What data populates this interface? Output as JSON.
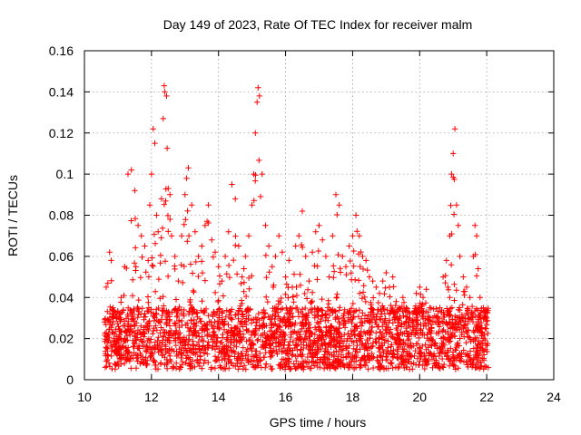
{
  "chart_data": {
    "type": "scatter",
    "title": "Day 149 of 2023, Rate Of TEC Index for receiver malm",
    "xlabel": "GPS time / hours",
    "ylabel": "ROTI / TECUs",
    "xlim": [
      10,
      24
    ],
    "ylim": [
      0,
      0.16
    ],
    "x_ticks": [
      10,
      12,
      14,
      16,
      18,
      20,
      22,
      24
    ],
    "y_ticks": [
      0,
      0.02,
      0.04,
      0.06,
      0.08,
      0.1,
      0.12,
      0.14,
      0.16
    ],
    "x_tick_labels": [
      "10",
      "12",
      "14",
      "16",
      "18",
      "20",
      "22",
      "24"
    ],
    "y_tick_labels": [
      "0",
      "0.02",
      "0.04",
      "0.06",
      "0.08",
      "0.1",
      "0.12",
      "0.14",
      "0.16"
    ],
    "grid": true,
    "marker": "+",
    "color": "#ff0000",
    "x_range_of_data": [
      10.6,
      22.05
    ],
    "series": [
      {
        "points": [
          [
            10.65,
            0.045
          ],
          [
            10.7,
            0.047
          ],
          [
            10.75,
            0.062
          ],
          [
            10.8,
            0.058
          ],
          [
            10.85,
            0.035
          ],
          [
            10.95,
            0.03
          ],
          [
            11.0,
            0.033
          ],
          [
            11.1,
            0.04
          ],
          [
            11.2,
            0.055
          ],
          [
            11.3,
            0.1
          ],
          [
            11.4,
            0.102
          ],
          [
            11.5,
            0.092
          ],
          [
            11.6,
            0.075
          ],
          [
            11.7,
            0.07
          ],
          [
            11.8,
            0.065
          ],
          [
            11.9,
            0.058
          ],
          [
            11.95,
            0.085
          ],
          [
            12.0,
            0.1
          ],
          [
            12.05,
            0.122
          ],
          [
            12.1,
            0.115
          ],
          [
            12.15,
            0.08
          ],
          [
            12.2,
            0.072
          ],
          [
            12.3,
            0.088
          ],
          [
            12.35,
            0.127
          ],
          [
            12.38,
            0.143
          ],
          [
            12.4,
            0.14
          ],
          [
            12.45,
            0.138
          ],
          [
            12.5,
            0.093
          ],
          [
            12.55,
            0.09
          ],
          [
            12.6,
            0.07
          ],
          [
            12.7,
            0.06
          ],
          [
            12.8,
            0.048
          ],
          [
            12.9,
            0.07
          ],
          [
            13.0,
            0.09
          ],
          [
            13.05,
            0.098
          ],
          [
            13.1,
            0.103
          ],
          [
            13.2,
            0.085
          ],
          [
            13.3,
            0.072
          ],
          [
            13.4,
            0.06
          ],
          [
            13.5,
            0.065
          ],
          [
            13.6,
            0.075
          ],
          [
            13.7,
            0.085
          ],
          [
            13.8,
            0.068
          ],
          [
            13.9,
            0.062
          ],
          [
            14.0,
            0.055
          ],
          [
            14.1,
            0.048
          ],
          [
            14.2,
            0.06
          ],
          [
            14.3,
            0.072
          ],
          [
            14.4,
            0.095
          ],
          [
            14.5,
            0.088
          ],
          [
            14.6,
            0.065
          ],
          [
            14.7,
            0.05
          ],
          [
            14.8,
            0.06
          ],
          [
            14.9,
            0.07
          ],
          [
            15.0,
            0.085
          ],
          [
            15.05,
            0.1
          ],
          [
            15.1,
            0.12
          ],
          [
            15.15,
            0.135
          ],
          [
            15.18,
            0.142
          ],
          [
            15.22,
            0.138
          ],
          [
            15.3,
            0.1
          ],
          [
            15.4,
            0.075
          ],
          [
            15.5,
            0.065
          ],
          [
            15.6,
            0.055
          ],
          [
            15.7,
            0.06
          ],
          [
            15.8,
            0.07
          ],
          [
            15.9,
            0.062
          ],
          [
            16.0,
            0.05
          ],
          [
            16.1,
            0.058
          ],
          [
            16.2,
            0.045
          ],
          [
            16.3,
            0.065
          ],
          [
            16.4,
            0.07
          ],
          [
            16.5,
            0.082
          ],
          [
            16.6,
            0.06
          ],
          [
            16.7,
            0.048
          ],
          [
            16.8,
            0.062
          ],
          [
            16.9,
            0.072
          ],
          [
            17.0,
            0.075
          ],
          [
            17.1,
            0.068
          ],
          [
            17.2,
            0.06
          ],
          [
            17.3,
            0.05
          ],
          [
            17.4,
            0.07
          ],
          [
            17.5,
            0.09
          ],
          [
            17.6,
            0.085
          ],
          [
            17.7,
            0.06
          ],
          [
            17.8,
            0.055
          ],
          [
            17.9,
            0.065
          ],
          [
            18.0,
            0.07
          ],
          [
            18.1,
            0.08
          ],
          [
            18.2,
            0.07
          ],
          [
            18.3,
            0.06
          ],
          [
            18.4,
            0.058
          ],
          [
            18.5,
            0.05
          ],
          [
            18.6,
            0.048
          ],
          [
            18.7,
            0.045
          ],
          [
            18.8,
            0.042
          ],
          [
            18.9,
            0.048
          ],
          [
            19.0,
            0.052
          ],
          [
            19.1,
            0.045
          ],
          [
            19.2,
            0.05
          ],
          [
            19.3,
            0.038
          ],
          [
            19.4,
            0.035
          ],
          [
            19.5,
            0.04
          ],
          [
            19.6,
            0.035
          ],
          [
            19.7,
            0.03
          ],
          [
            19.8,
            0.032
          ],
          [
            19.9,
            0.042
          ],
          [
            20.0,
            0.045
          ],
          [
            20.1,
            0.04
          ],
          [
            20.2,
            0.044
          ],
          [
            20.3,
            0.035
          ],
          [
            20.4,
            0.03
          ],
          [
            20.5,
            0.028
          ],
          [
            20.6,
            0.035
          ],
          [
            20.7,
            0.05
          ],
          [
            20.8,
            0.058
          ],
          [
            20.9,
            0.07
          ],
          [
            20.95,
            0.1
          ],
          [
            21.0,
            0.11
          ],
          [
            21.05,
            0.122
          ],
          [
            21.1,
            0.085
          ],
          [
            21.15,
            0.075
          ],
          [
            21.2,
            0.06
          ],
          [
            21.3,
            0.05
          ],
          [
            21.4,
            0.045
          ],
          [
            21.5,
            0.04
          ],
          [
            21.6,
            0.06
          ],
          [
            21.65,
            0.075
          ],
          [
            21.7,
            0.07
          ],
          [
            21.8,
            0.04
          ],
          [
            21.9,
            0.035
          ],
          [
            22.0,
            0.03
          ]
        ]
      }
    ]
  }
}
